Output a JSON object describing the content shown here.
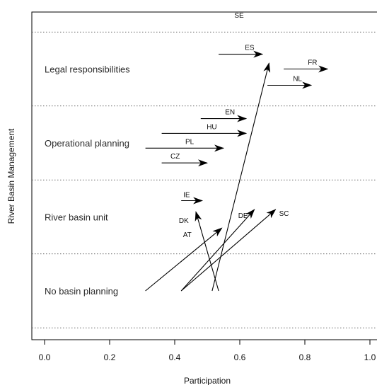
{
  "chart_data": {
    "type": "arrow-plot",
    "xlabel": "Participation",
    "ylabel": "River Basin Management",
    "xlim": [
      0.0,
      1.0
    ],
    "x_ticks": [
      "0.0",
      "0.2",
      "0.4",
      "0.6",
      "0.8",
      "1.0"
    ],
    "levels": [
      "No basin planning",
      "River basin unit",
      "Operational planning",
      "Legal responsibilities"
    ],
    "grid": "dotted horizontal separators between levels",
    "arrows": [
      {
        "label": "ES",
        "from": [
          0.535,
          3.2
        ],
        "to": [
          0.67,
          3.2
        ]
      },
      {
        "label": "FR",
        "from": [
          0.735,
          3.0
        ],
        "to": [
          0.87,
          3.0
        ]
      },
      {
        "label": "NL",
        "from": [
          0.685,
          2.78
        ],
        "to": [
          0.82,
          2.78
        ]
      },
      {
        "label": "EN",
        "from": [
          0.48,
          2.33
        ],
        "to": [
          0.62,
          2.33
        ]
      },
      {
        "label": "HU",
        "from": [
          0.36,
          2.13
        ],
        "to": [
          0.62,
          2.13
        ]
      },
      {
        "label": "PL",
        "from": [
          0.31,
          1.93
        ],
        "to": [
          0.55,
          1.93
        ]
      },
      {
        "label": "CZ",
        "from": [
          0.36,
          1.73
        ],
        "to": [
          0.5,
          1.73
        ]
      },
      {
        "label": "IE",
        "from": [
          0.42,
          1.22
        ],
        "to": [
          0.485,
          1.22
        ]
      },
      {
        "label": "SE",
        "from": [
          0.515,
          0.0
        ],
        "to": [
          0.69,
          3.08
        ]
      },
      {
        "label": "DK",
        "from": [
          0.535,
          0.0
        ],
        "to": [
          0.465,
          1.07
        ]
      },
      {
        "label": "DE",
        "from": [
          0.42,
          0.0
        ],
        "to": [
          0.645,
          1.1
        ]
      },
      {
        "label": "SC",
        "from": [
          0.42,
          0.0
        ],
        "to": [
          0.71,
          1.1
        ]
      },
      {
        "label": "AT",
        "from": [
          0.31,
          0.0
        ],
        "to": [
          0.545,
          0.85
        ]
      }
    ]
  }
}
